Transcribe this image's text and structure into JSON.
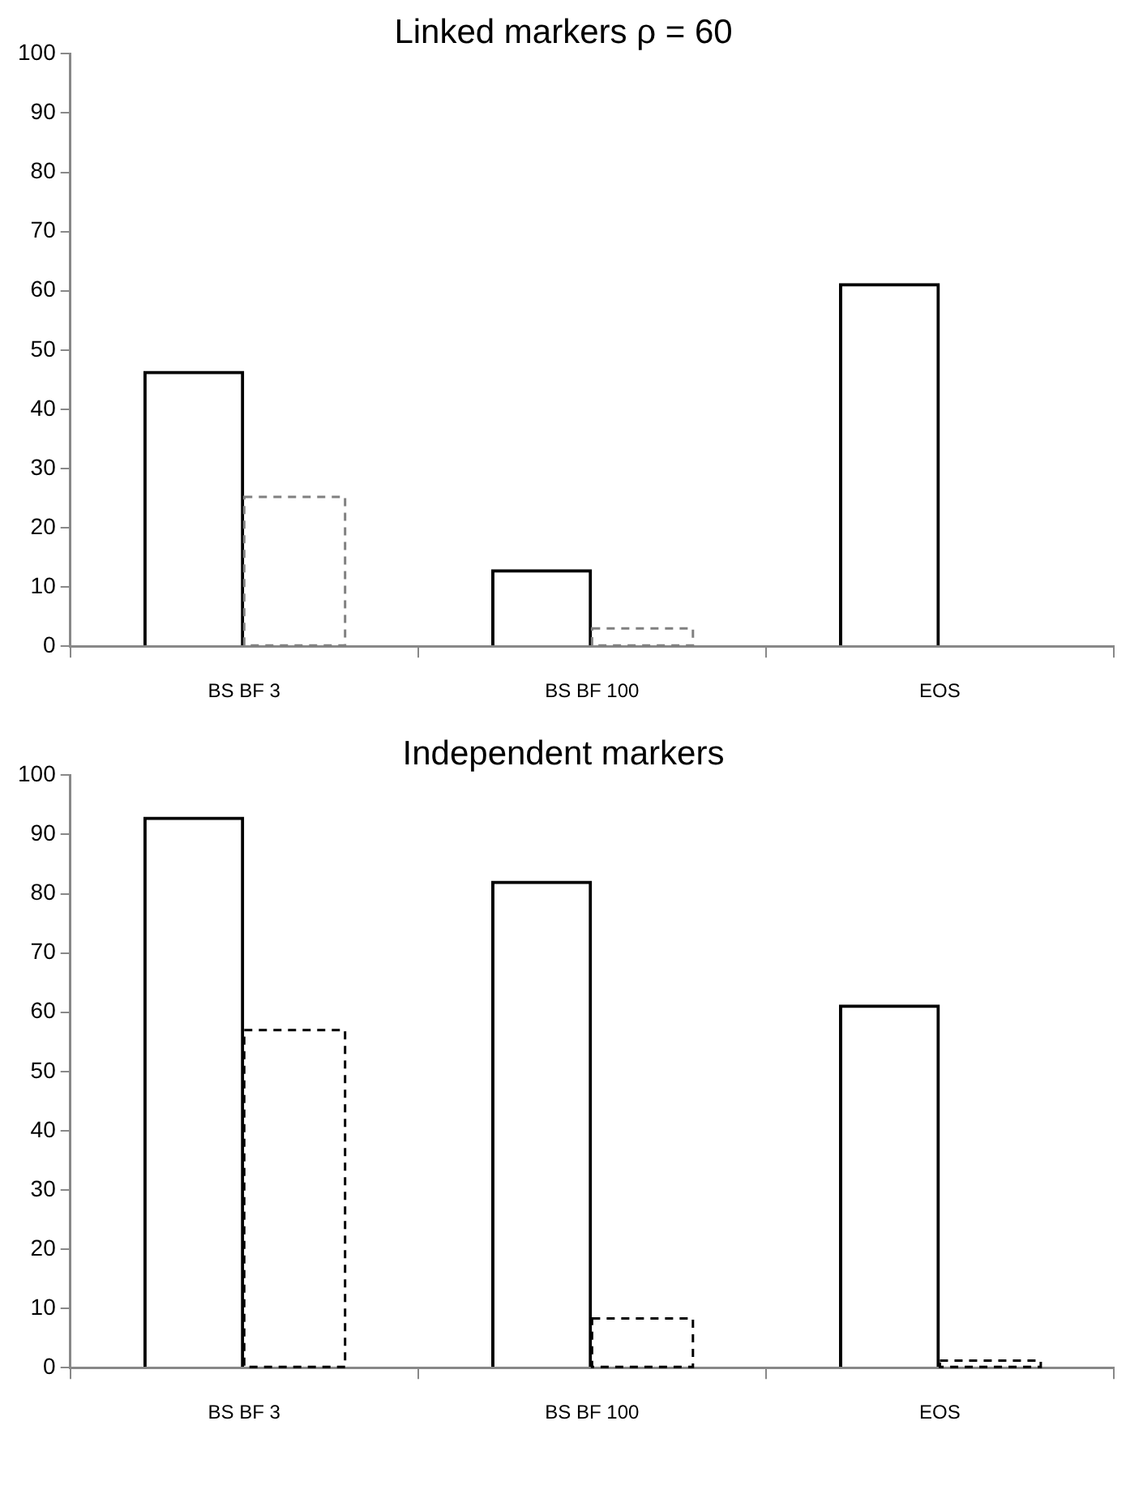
{
  "chart_data": [
    {
      "type": "bar",
      "title": "Linked markers ρ = 60",
      "categories": [
        "BS BF 3",
        "BS BF 100",
        "EOS"
      ],
      "series": [
        {
          "color": "#000000",
          "line_style": "solid",
          "values": [
            46.5,
            13,
            61.3
          ]
        },
        {
          "color": "#808080",
          "line_style": "dashed",
          "values": [
            25.2,
            3,
            null
          ]
        }
      ],
      "ylim": [
        0,
        100
      ],
      "yticks": [
        0,
        10,
        20,
        30,
        40,
        50,
        60,
        70,
        80,
        90,
        100
      ],
      "grid": false,
      "legend": false
    },
    {
      "type": "bar",
      "title": "Independent markers",
      "categories": [
        "BS BF 3",
        "BS BF 100",
        "EOS"
      ],
      "series": [
        {
          "color": "#000000",
          "line_style": "solid",
          "values": [
            93,
            82.2,
            61.3
          ]
        },
        {
          "color": "#000000",
          "line_style": "dashed",
          "values": [
            57,
            8.3,
            1.2
          ]
        }
      ],
      "ylim": [
        0,
        100
      ],
      "yticks": [
        0,
        10,
        20,
        30,
        40,
        50,
        60,
        70,
        80,
        90,
        100
      ],
      "grid": false,
      "legend": false
    }
  ]
}
